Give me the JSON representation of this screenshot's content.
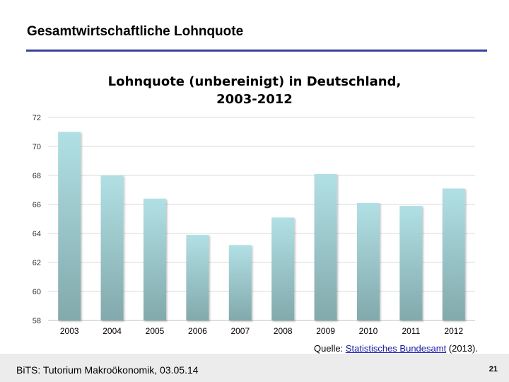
{
  "slide": {
    "title": "Gesamtwirtschaftliche Lohnquote",
    "source_prefix": "Quelle: ",
    "source_link": "Statistisches Bundesamt",
    "source_suffix": " (2013).",
    "footer_text": "BiTS: Tutorium Makroökonomik, 03.05.14",
    "page_number": "21"
  },
  "chart_data": {
    "type": "bar",
    "title_line1": "Lohnquote (unbereinigt) in Deutschland,",
    "title_line2": "2003-2012",
    "categories": [
      "2003",
      "2004",
      "2005",
      "2006",
      "2007",
      "2008",
      "2009",
      "2010",
      "2011",
      "2012"
    ],
    "values": [
      71.0,
      68.0,
      66.4,
      63.9,
      63.2,
      65.1,
      68.1,
      66.1,
      65.9,
      67.1
    ],
    "ylim": [
      58,
      72
    ],
    "yticks": [
      58,
      60,
      62,
      64,
      66,
      68,
      70,
      72
    ],
    "grid": true,
    "legend": false,
    "colors": {
      "bar_top": "#b1e0e4",
      "bar_bottom": "#82a9ac",
      "grid": "#d9d9d9",
      "axis": "#bfbfbf"
    }
  }
}
